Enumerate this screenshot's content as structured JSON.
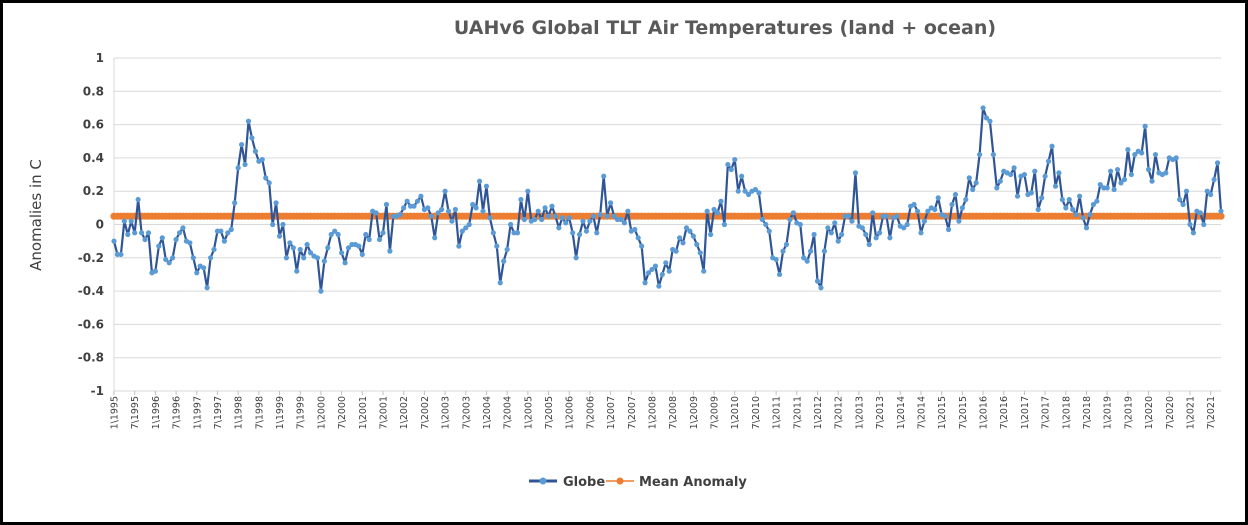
{
  "chart_data": {
    "type": "line",
    "title": "UAHv6 Global TLT Air Temperatures (land + ocean)",
    "ylabel": "Anomalies in C",
    "xlabel": "",
    "ylim": [
      -1,
      1
    ],
    "yticks": [
      "1",
      "0.8",
      "0.6",
      "0.4",
      "0.2",
      "0",
      "-0.2",
      "-0.4",
      "-0.6",
      "-0.8",
      "-1"
    ],
    "ytick_values": [
      1,
      0.8,
      0.6,
      0.4,
      0.2,
      0,
      -0.2,
      -0.4,
      -0.6,
      -0.8,
      -1
    ],
    "xticks": [
      "1\\1995",
      "7\\1995",
      "1\\1996",
      "7\\1996",
      "1\\1997",
      "7\\1997",
      "1\\1998",
      "7\\1998",
      "1\\1999",
      "7\\1999",
      "1\\2000",
      "7\\2000",
      "1\\2001",
      "7\\2001",
      "1\\2002",
      "7\\2002",
      "1\\2003",
      "7\\2003",
      "1\\2004",
      "7\\2004",
      "1\\2005",
      "7\\2005",
      "1\\2006",
      "7\\2006",
      "1\\2007",
      "7\\2007",
      "1\\2008",
      "7\\2008",
      "1\\2009",
      "7\\2009",
      "1\\2010",
      "7\\2010",
      "1\\2011",
      "7\\2011",
      "1\\2012",
      "7\\2012",
      "1\\2013",
      "7\\2013",
      "1\\2014",
      "7\\2014",
      "1\\2015",
      "7\\2015",
      "1\\2016",
      "7\\2016",
      "1\\2017",
      "7\\2017",
      "1\\2018",
      "7\\2018",
      "1\\2019",
      "7\\2019",
      "1\\2020",
      "7\\2020",
      "1\\2021",
      "7\\2021"
    ],
    "grid": true,
    "legend_position": "bottom",
    "series": [
      {
        "name": "Globe",
        "color": "#2f5597",
        "marker_color": "#5b9bd5",
        "values": [
          -0.1,
          -0.18,
          -0.18,
          0.02,
          -0.06,
          0.02,
          -0.05,
          0.15,
          -0.05,
          -0.09,
          -0.05,
          -0.29,
          -0.28,
          -0.13,
          -0.08,
          -0.21,
          -0.23,
          -0.2,
          -0.09,
          -0.05,
          -0.02,
          -0.1,
          -0.11,
          -0.2,
          -0.29,
          -0.25,
          -0.26,
          -0.38,
          -0.2,
          -0.15,
          -0.04,
          -0.04,
          -0.1,
          -0.05,
          -0.03,
          0.13,
          0.34,
          0.48,
          0.36,
          0.62,
          0.52,
          0.44,
          0.38,
          0.39,
          0.28,
          0.25,
          0.0,
          0.13,
          -0.07,
          0.0,
          -0.2,
          -0.11,
          -0.14,
          -0.28,
          -0.15,
          -0.2,
          -0.12,
          -0.17,
          -0.19,
          -0.2,
          -0.4,
          -0.22,
          -0.14,
          -0.06,
          -0.04,
          -0.06,
          -0.17,
          -0.23,
          -0.14,
          -0.12,
          -0.12,
          -0.13,
          -0.18,
          -0.06,
          -0.09,
          0.08,
          0.07,
          -0.09,
          -0.05,
          0.12,
          -0.16,
          0.05,
          0.05,
          0.06,
          0.1,
          0.14,
          0.11,
          0.11,
          0.14,
          0.17,
          0.09,
          0.1,
          0.05,
          -0.08,
          0.07,
          0.09,
          0.2,
          0.08,
          0.02,
          0.09,
          -0.13,
          -0.04,
          -0.02,
          0.0,
          0.12,
          0.1,
          0.26,
          0.08,
          0.23,
          0.04,
          -0.05,
          -0.13,
          -0.35,
          -0.22,
          -0.15,
          0.0,
          -0.05,
          -0.05,
          0.15,
          0.03,
          0.2,
          0.02,
          0.03,
          0.08,
          0.03,
          0.1,
          0.05,
          0.11,
          0.05,
          -0.02,
          0.04,
          0.01,
          0.04,
          -0.05,
          -0.2,
          -0.06,
          0.02,
          -0.04,
          0.02,
          0.05,
          -0.05,
          0.06,
          0.29,
          0.05,
          0.13,
          0.05,
          0.03,
          0.03,
          0.01,
          0.08,
          -0.04,
          -0.03,
          -0.08,
          -0.13,
          -0.35,
          -0.29,
          -0.27,
          -0.25,
          -0.37,
          -0.3,
          -0.23,
          -0.28,
          -0.15,
          -0.16,
          -0.08,
          -0.11,
          -0.02,
          -0.04,
          -0.07,
          -0.12,
          -0.17,
          -0.28,
          0.08,
          -0.06,
          0.09,
          0.07,
          0.14,
          0.0,
          0.36,
          0.33,
          0.39,
          0.2,
          0.29,
          0.2,
          0.18,
          0.2,
          0.21,
          0.19,
          0.03,
          0.0,
          -0.04,
          -0.2,
          -0.21,
          -0.3,
          -0.16,
          -0.12,
          0.03,
          0.07,
          0.01,
          0.0,
          -0.2,
          -0.22,
          -0.16,
          -0.06,
          -0.34,
          -0.38,
          -0.16,
          -0.02,
          -0.05,
          0.01,
          -0.1,
          -0.06,
          0.05,
          0.05,
          0.02,
          0.31,
          -0.01,
          -0.02,
          -0.06,
          -0.12,
          0.07,
          -0.08,
          -0.05,
          0.05,
          0.05,
          -0.08,
          0.04,
          0.05,
          -0.01,
          -0.02,
          0.0,
          0.11,
          0.12,
          0.08,
          -0.05,
          0.02,
          0.08,
          0.1,
          0.09,
          0.16,
          0.06,
          0.05,
          -0.03,
          0.12,
          0.18,
          0.02,
          0.1,
          0.15,
          0.28,
          0.21,
          0.25,
          0.42,
          0.7,
          0.64,
          0.62,
          0.42,
          0.22,
          0.26,
          0.32,
          0.31,
          0.3,
          0.34,
          0.17,
          0.29,
          0.3,
          0.18,
          0.19,
          0.32,
          0.09,
          0.16,
          0.29,
          0.38,
          0.47,
          0.23,
          0.31,
          0.15,
          0.1,
          0.15,
          0.09,
          0.06,
          0.17,
          0.04,
          -0.02,
          0.06,
          0.12,
          0.14,
          0.24,
          0.22,
          0.22,
          0.32,
          0.21,
          0.33,
          0.25,
          0.27,
          0.45,
          0.3,
          0.42,
          0.44,
          0.43,
          0.59,
          0.33,
          0.26,
          0.42,
          0.31,
          0.3,
          0.31,
          0.4,
          0.39,
          0.4,
          0.15,
          0.12,
          0.2,
          0.0,
          -0.05,
          0.08,
          0.07,
          0.0,
          0.2,
          0.18,
          0.27,
          0.37,
          0.08
        ]
      },
      {
        "name": "Mean Anomaly",
        "color": "#ed7d31",
        "constant": 0.05
      }
    ]
  }
}
